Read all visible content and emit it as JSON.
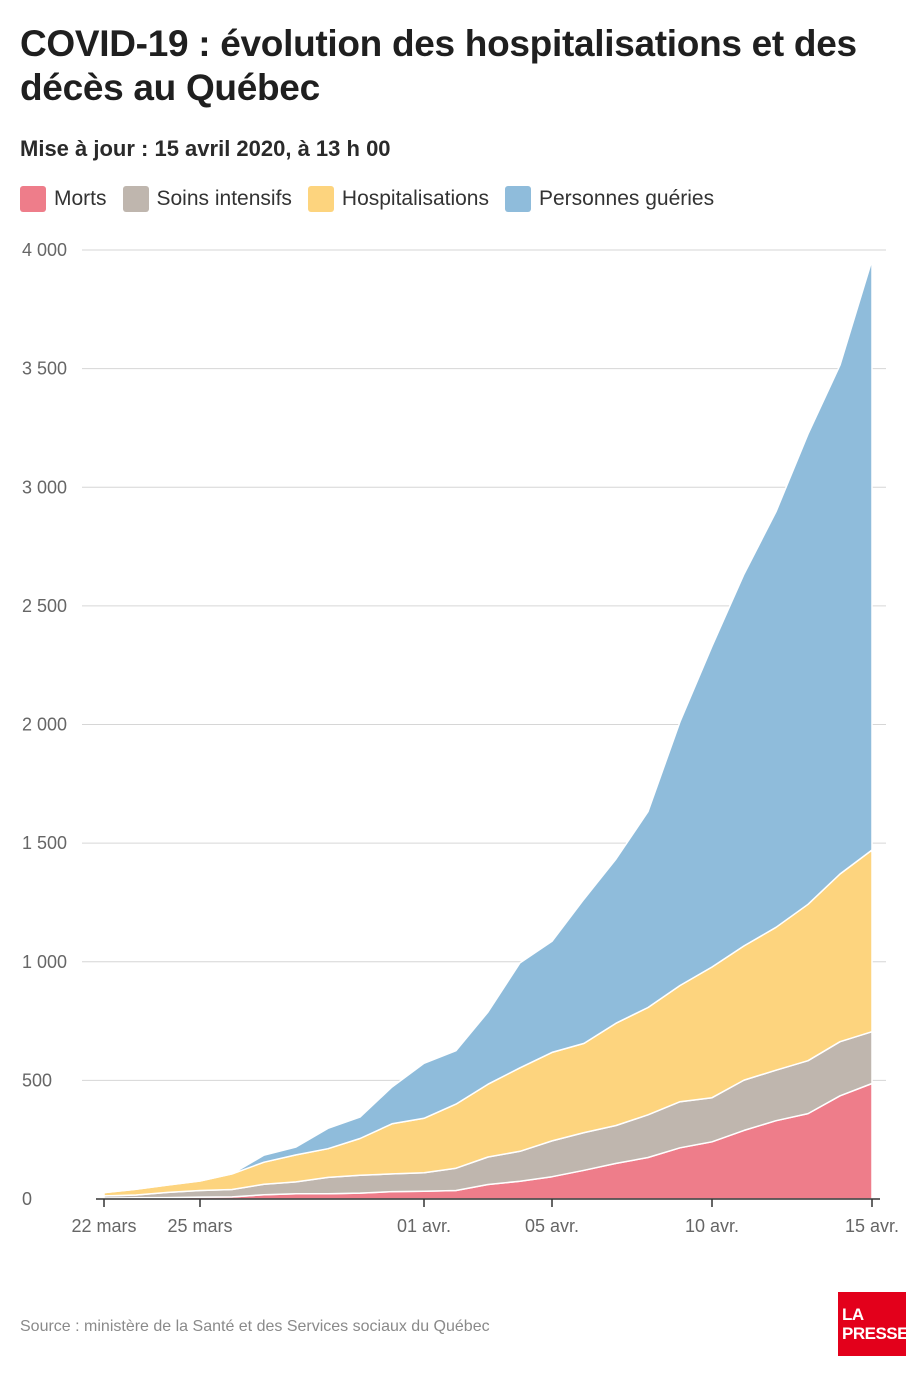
{
  "header": {
    "title": "COVID-19 : évolution des hospitalisations et des décès au Québec",
    "subtitle": "Mise à jour : 15 avril 2020, à 13 h 00"
  },
  "legend": [
    {
      "label": "Morts",
      "color": "#ee7d8a"
    },
    {
      "label": "Soins intensifs",
      "color": "#bfb6ae"
    },
    {
      "label": "Hospitalisations",
      "color": "#fdd47e"
    },
    {
      "label": "Personnes guéries",
      "color": "#8fbcdb"
    }
  ],
  "footer": {
    "source": "Source : ministère de la Santé et des Services sociaux du Québec",
    "logo_line1": "LA",
    "logo_line2": "PRESSE"
  },
  "chart_data": {
    "type": "area",
    "stacked": true,
    "x": [
      "22 mars",
      "23 mars",
      "24 mars",
      "25 mars",
      "26 mars",
      "27 mars",
      "28 mars",
      "29 mars",
      "30 mars",
      "31 mars",
      "01 avr.",
      "02 avr.",
      "03 avr.",
      "04 avr.",
      "05 avr.",
      "06 avr.",
      "07 avr.",
      "08 avr.",
      "09 avr.",
      "10 avr.",
      "11 avr.",
      "12 avr.",
      "13 avr.",
      "14 avr.",
      "15 avr."
    ],
    "xticks": [
      "22 mars",
      "25 mars",
      "01 avr.",
      "05 avr.",
      "10 avr.",
      "15 avr."
    ],
    "yticks": [
      "0",
      "500",
      "1 000",
      "1 500",
      "2 000",
      "2 500",
      "3 000",
      "3 500",
      "4 000"
    ],
    "ylim": [
      0,
      4000
    ],
    "grid": true,
    "series": [
      {
        "name": "Morts",
        "color": "#ee7d8a",
        "values": [
          4,
          5,
          6,
          8,
          9,
          18,
          22,
          22,
          25,
          31,
          33,
          36,
          61,
          75,
          94,
          121,
          150,
          175,
          216,
          241,
          289,
          330,
          360,
          435,
          487
        ]
      },
      {
        "name": "Soins intensifs",
        "color": "#bfb6ae",
        "values": [
          9,
          12,
          22,
          28,
          31,
          44,
          50,
          69,
          75,
          75,
          78,
          94,
          116,
          126,
          151,
          159,
          160,
          180,
          194,
          186,
          212,
          213,
          223,
          228,
          218
        ]
      },
      {
        "name": "Hospitalisations",
        "color": "#fdd47e",
        "values": [
          14,
          24,
          31,
          40,
          66,
          93,
          114,
          121,
          155,
          211,
          229,
          270,
          307,
          352,
          373,
          376,
          431,
          452,
          490,
          551,
          566,
          602,
          659,
          707,
          766
        ]
      },
      {
        "name": "Personnes guéries",
        "color": "#8fbcdb",
        "values": [
          0,
          0,
          0,
          0,
          0,
          30,
          33,
          86,
          90,
          155,
          232,
          225,
          304,
          442,
          468,
          608,
          692,
          826,
          1112,
          1352,
          1567,
          1752,
          1982,
          2145,
          2487
        ]
      }
    ]
  }
}
